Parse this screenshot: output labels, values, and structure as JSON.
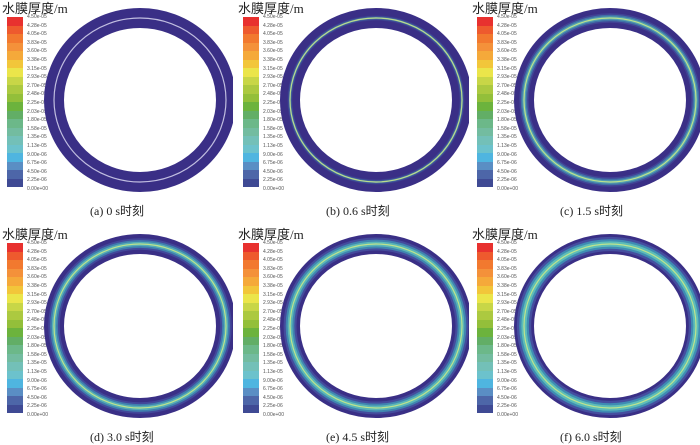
{
  "colorbar": {
    "title": "水膜厚度/m",
    "labels": [
      "4.50e-05",
      "4.28e-05",
      "4.05e-05",
      "3.83e-05",
      "3.60e-05",
      "3.38e-05",
      "3.15e-05",
      "2.93e-05",
      "2.70e-05",
      "2.48e-05",
      "2.25e-05",
      "2.03e-05",
      "1.80e-05",
      "1.58e-05",
      "1.35e-05",
      "1.13e-05",
      "9.00e-06",
      "6.75e-06",
      "4.50e-06",
      "2.25e-06",
      "0.00e+00"
    ],
    "colors": [
      "#e8312f",
      "#ee5a2e",
      "#f2792f",
      "#f4913a",
      "#f5a93a",
      "#f2c63a",
      "#ebe54a",
      "#c8d647",
      "#acc940",
      "#93bf3a",
      "#6cb33d",
      "#62ae66",
      "#6cb889",
      "#73bca0",
      "#73c0b8",
      "#6cc2cc",
      "#4fb5e0",
      "#5a8ec4",
      "#4d66a8",
      "#3f4a94"
    ]
  },
  "panels": [
    {
      "caption": "(a) 0 s时刻",
      "level": 0
    },
    {
      "caption": "(b) 0.6 s时刻",
      "level": 0.3
    },
    {
      "caption": "(c) 1.5 s时刻",
      "level": 0.6
    },
    {
      "caption": "(d) 3.0 s时刻",
      "level": 0.75
    },
    {
      "caption": "(e) 4.5 s时刻",
      "level": 0.85
    },
    {
      "caption": "(f) 6.0 s时刻",
      "level": 0.95
    }
  ]
}
